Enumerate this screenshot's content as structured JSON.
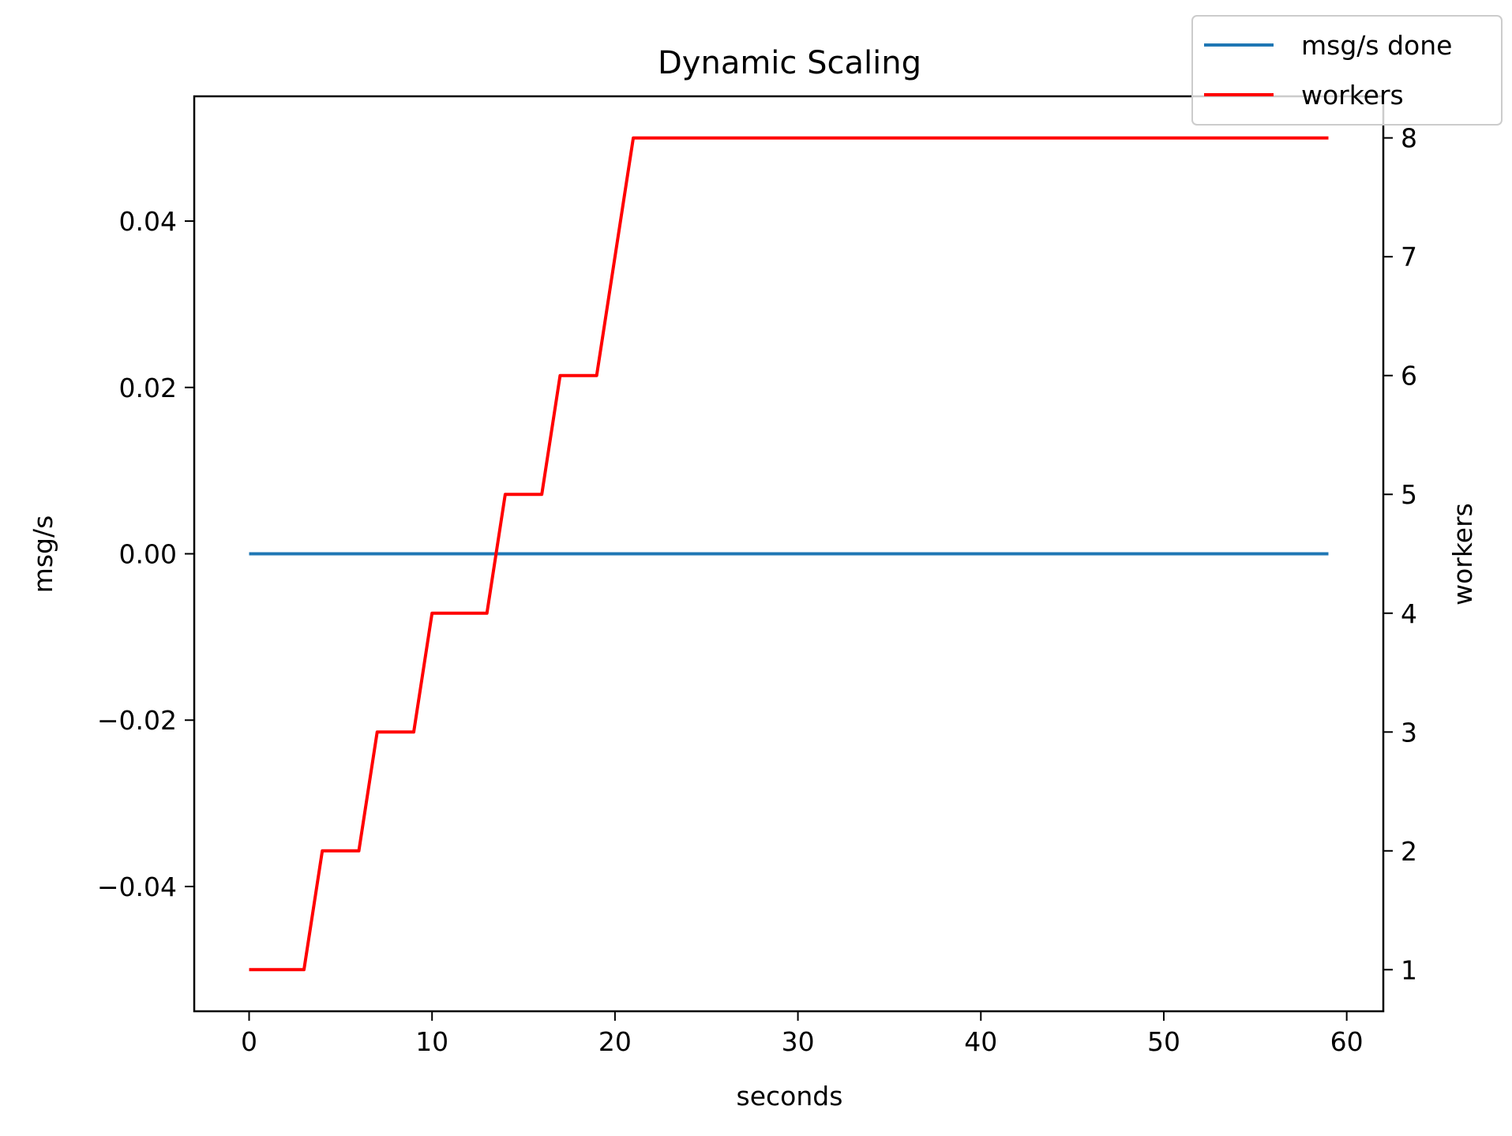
{
  "chart_data": {
    "type": "line",
    "title": "Dynamic Scaling",
    "xlabel": "seconds",
    "ylabel": "msg/s",
    "y2label": "workers",
    "xlim": [
      -3,
      62
    ],
    "ylim": [
      -0.055,
      0.055
    ],
    "y2lim": [
      0.65,
      8.35
    ],
    "xticks": [
      0,
      10,
      20,
      30,
      40,
      50,
      60
    ],
    "xtick_labels": [
      "0",
      "10",
      "20",
      "30",
      "40",
      "50",
      "60"
    ],
    "yticks": [
      -0.04,
      -0.02,
      0.0,
      0.02,
      0.04
    ],
    "ytick_labels": [
      "−0.04",
      "−0.02",
      "0.00",
      "0.02",
      "0.04"
    ],
    "y2ticks": [
      1,
      2,
      3,
      4,
      5,
      6,
      7,
      8
    ],
    "y2tick_labels": [
      "1",
      "2",
      "3",
      "4",
      "5",
      "6",
      "7",
      "8"
    ],
    "grid": false,
    "legend_position": "top-right",
    "series": [
      {
        "name": "msg/s done",
        "axis": "left",
        "color": "#1f77b4",
        "x": [
          0,
          59
        ],
        "y": [
          0,
          0
        ]
      },
      {
        "name": "workers",
        "axis": "right",
        "color": "#ff0000",
        "x": [
          0,
          1,
          2,
          3,
          4,
          5,
          6,
          7,
          8,
          9,
          10,
          11,
          12,
          13,
          14,
          15,
          16,
          17,
          18,
          19,
          20,
          21,
          22,
          23,
          24,
          25,
          26,
          27,
          28,
          29,
          30,
          31,
          32,
          33,
          34,
          35,
          36,
          37,
          38,
          39,
          40,
          41,
          42,
          43,
          44,
          45,
          46,
          47,
          48,
          49,
          50,
          51,
          52,
          53,
          54,
          55,
          56,
          57,
          58,
          59
        ],
        "y": [
          1,
          1,
          1,
          1,
          2,
          2,
          2,
          3,
          3,
          3,
          4,
          4,
          4,
          4,
          5,
          5,
          5,
          6,
          6,
          6,
          7,
          8,
          8,
          8,
          8,
          8,
          8,
          8,
          8,
          8,
          8,
          8,
          8,
          8,
          8,
          8,
          8,
          8,
          8,
          8,
          8,
          8,
          8,
          8,
          8,
          8,
          8,
          8,
          8,
          8,
          8,
          8,
          8,
          8,
          8,
          8,
          8,
          8,
          8,
          8
        ]
      }
    ]
  }
}
